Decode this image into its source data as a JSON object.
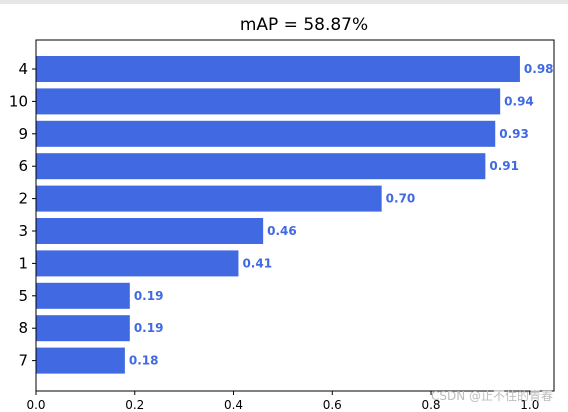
{
  "chart_data": {
    "type": "bar",
    "orientation": "horizontal",
    "title": "mAP = 58.87%",
    "categories": [
      "4",
      "10",
      "9",
      "6",
      "2",
      "3",
      "1",
      "5",
      "8",
      "7"
    ],
    "values": [
      0.98,
      0.94,
      0.93,
      0.91,
      0.7,
      0.46,
      0.41,
      0.19,
      0.19,
      0.18
    ],
    "value_labels": [
      "0.98",
      "0.94",
      "0.93",
      "0.91",
      "0.70",
      "0.46",
      "0.41",
      "0.19",
      "0.19",
      "0.18"
    ],
    "xlim": [
      0,
      1.0
    ],
    "xticks": [
      "0.0",
      "0.2",
      "0.4",
      "0.6",
      "0.8",
      "1.0"
    ],
    "xlabel": "",
    "ylabel": "",
    "grid": false,
    "bar_color": "#4169e1",
    "label_color": "#4169e1"
  },
  "watermark": "CSDN @止不住的青春"
}
